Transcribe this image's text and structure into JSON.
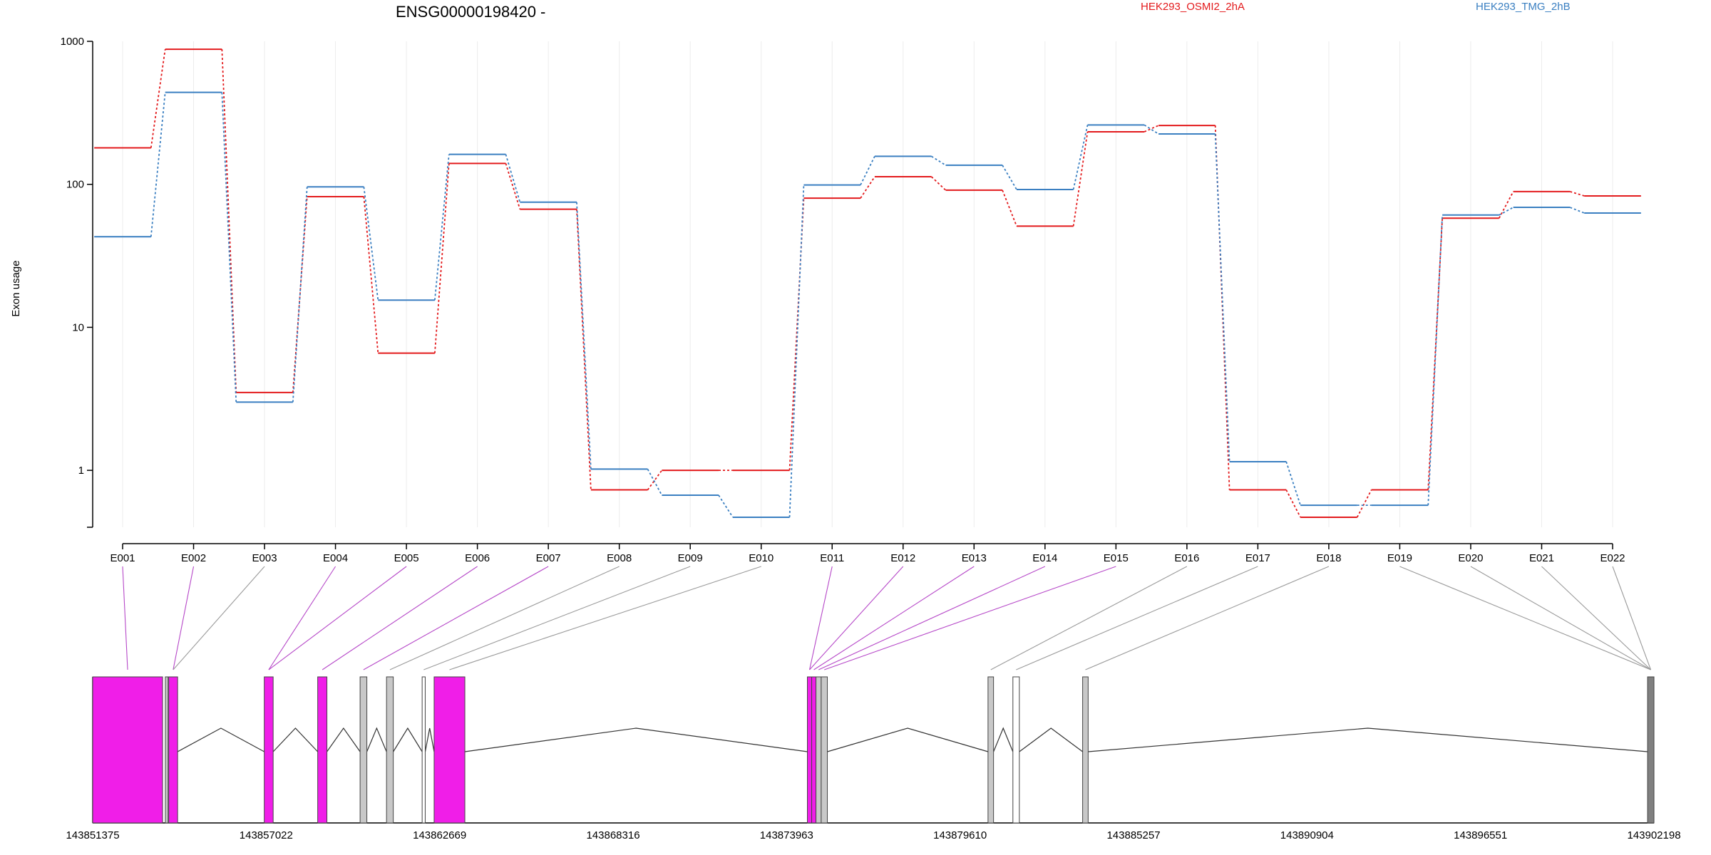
{
  "chart_data": {
    "type": "line",
    "title": "ENSG00000198420 -",
    "ylabel": "Exon usage",
    "xlabel": "",
    "y_scale": "log",
    "ylim": [
      0.4,
      1000
    ],
    "y_ticks": [
      1,
      10,
      100,
      1000
    ],
    "grid": "vertical",
    "legend_position": "top-right",
    "categories": [
      "E001",
      "E002",
      "E003",
      "E004",
      "E005",
      "E006",
      "E007",
      "E008",
      "E009",
      "E010",
      "E011",
      "E012",
      "E013",
      "E014",
      "E015",
      "E016",
      "E017",
      "E018",
      "E019",
      "E020",
      "E021",
      "E022"
    ],
    "series": [
      {
        "name": "HEK293_OSMI2_2hA",
        "color": "#e31a1c",
        "values": [
          180,
          880,
          3.5,
          82,
          6.6,
          140,
          67,
          0.73,
          1.0,
          1.0,
          80,
          113,
          91,
          51,
          233,
          258,
          0.73,
          0.47,
          0.73,
          58,
          89,
          83
        ]
      },
      {
        "name": "HEK293_TMG_2hB",
        "color": "#3a7fc1",
        "values": [
          43,
          440,
          3.0,
          96,
          15.5,
          162,
          75,
          1.02,
          0.67,
          0.47,
          99,
          157,
          136,
          92,
          260,
          225,
          1.15,
          0.57,
          0.57,
          61,
          69,
          63
        ]
      }
    ],
    "exon_highlight": [
      true,
      true,
      false,
      true,
      true,
      true,
      true,
      false,
      false,
      false,
      true,
      true,
      true,
      true,
      true,
      false,
      false,
      false,
      false,
      false,
      false,
      false
    ],
    "gene_model": {
      "coord_labels": [
        "143851375",
        "143857022",
        "143862669",
        "143868316",
        "143873963",
        "143879610",
        "143885257",
        "143890904",
        "143896551",
        "143902198"
      ],
      "coord_range": [
        143851375,
        143902198
      ],
      "highlight_color": "#f01ee8",
      "plain_color": "#c8c8c8",
      "exons": [
        {
          "start": 143851375,
          "end": 143853650,
          "highlighted": true
        },
        {
          "start": 143853740,
          "end": 143853830,
          "highlighted": false
        },
        {
          "start": 143853850,
          "end": 143854140,
          "highlighted": true
        },
        {
          "start": 143856960,
          "end": 143857250,
          "highlighted": true
        },
        {
          "start": 143858700,
          "end": 143859000,
          "highlighted": true
        },
        {
          "start": 143860080,
          "end": 143860300,
          "highlighted": false
        },
        {
          "start": 143860940,
          "end": 143861160,
          "highlighted": false
        },
        {
          "start": 143862100,
          "end": 143862200,
          "highlighted": false,
          "outline": true
        },
        {
          "start": 143862490,
          "end": 143863490,
          "highlighted": true
        },
        {
          "start": 143874640,
          "end": 143874780,
          "highlighted": true
        },
        {
          "start": 143874780,
          "end": 143874920,
          "highlighted": true
        },
        {
          "start": 143874920,
          "end": 143875090,
          "highlighted": false
        },
        {
          "start": 143875090,
          "end": 143875290,
          "highlighted": false
        },
        {
          "start": 143880520,
          "end": 143880700,
          "highlighted": false
        },
        {
          "start": 143881330,
          "end": 143881540,
          "highlighted": false,
          "outline": true
        },
        {
          "start": 143883600,
          "end": 143883780,
          "highlighted": false
        },
        {
          "start": 143901990,
          "end": 143902198,
          "highlighted": false,
          "dark": true
        }
      ]
    }
  }
}
